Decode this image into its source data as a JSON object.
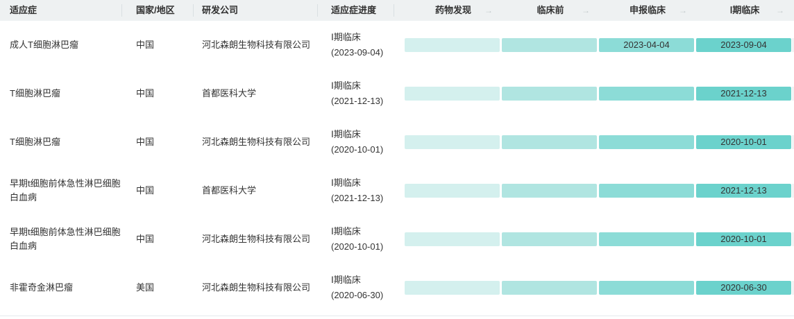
{
  "header": {
    "columns": [
      "适应症",
      "国家/地区",
      "研发公司",
      "适应症进度"
    ],
    "stage_columns": [
      "药物发现",
      "临床前",
      "申报临床",
      "Ⅰ期临床"
    ],
    "arrow_icon": "→"
  },
  "rows": [
    {
      "indication": "成人T细胞淋巴瘤",
      "country": "中国",
      "company": "河北森朗生物科技有限公司",
      "progress_phase": "Ⅰ期临床",
      "progress_date": "(2023-09-04)",
      "stages": [
        "",
        "",
        "2023-04-04",
        "2023-09-04"
      ]
    },
    {
      "indication": "T细胞淋巴瘤",
      "country": "中国",
      "company": "首都医科大学",
      "progress_phase": "Ⅰ期临床",
      "progress_date": "(2021-12-13)",
      "stages": [
        "",
        "",
        "",
        "2021-12-13"
      ]
    },
    {
      "indication": "T细胞淋巴瘤",
      "country": "中国",
      "company": "河北森朗生物科技有限公司",
      "progress_phase": "Ⅰ期临床",
      "progress_date": "(2020-10-01)",
      "stages": [
        "",
        "",
        "",
        "2020-10-01"
      ]
    },
    {
      "indication": "早期t细胞前体急性淋巴细胞白血病",
      "country": "中国",
      "company": "首都医科大学",
      "progress_phase": "Ⅰ期临床",
      "progress_date": "(2021-12-13)",
      "stages": [
        "",
        "",
        "",
        "2021-12-13"
      ]
    },
    {
      "indication": "早期t细胞前体急性淋巴细胞白血病",
      "country": "中国",
      "company": "河北森朗生物科技有限公司",
      "progress_phase": "Ⅰ期临床",
      "progress_date": "(2020-10-01)",
      "stages": [
        "",
        "",
        "",
        "2020-10-01"
      ]
    },
    {
      "indication": "非霍奇金淋巴瘤",
      "country": "美国",
      "company": "河北森朗生物科技有限公司",
      "progress_phase": "Ⅰ期临床",
      "progress_date": "(2020-06-30)",
      "stages": [
        "",
        "",
        "",
        "2020-06-30"
      ]
    }
  ],
  "colors": {
    "header_bg": "#eef1f2",
    "stage_gradient": [
      "#d4f0ee",
      "#b0e5e1",
      "#8cdcd7",
      "#6bd2cc"
    ],
    "next_stage_sliver": "#f0f3f4",
    "text": "#333333"
  }
}
